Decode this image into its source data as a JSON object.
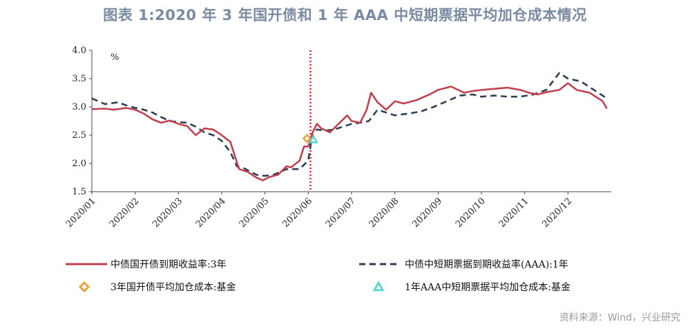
{
  "title": "图表 1:2020 年 3 年国开债和 1 年 AAA 中短期票据平均加仓成本情况",
  "source": "资料来源：Wind，兴业研究",
  "colors": {
    "series1": "#c0414f",
    "series2": "#2e3e56",
    "marker1": "#e8a23b",
    "marker2": "#5fd6d0",
    "vline": "#d81f1f"
  },
  "chart_data": {
    "type": "line",
    "ylabel": "%",
    "ylim": [
      1.5,
      4.0
    ],
    "yticks": [
      "4.0",
      "3.5",
      "3.0",
      "2.5",
      "2.0",
      "1.5"
    ],
    "xlim": [
      0,
      12
    ],
    "xticks": [
      "2020/01",
      "2020/02",
      "2020/03",
      "2020/04",
      "2020/05",
      "2020/06",
      "2020/07",
      "2020/08",
      "2020/09",
      "2020/10",
      "2020/11",
      "2020/12"
    ],
    "vline_x": 5.05,
    "series": [
      {
        "name": "中债国开债到期收益率:3年",
        "style": "solid",
        "x": [
          0,
          0.3,
          0.5,
          0.8,
          1.0,
          1.2,
          1.4,
          1.6,
          1.8,
          2.0,
          2.2,
          2.4,
          2.6,
          2.8,
          3.0,
          3.2,
          3.4,
          3.6,
          3.8,
          3.95,
          4.1,
          4.3,
          4.5,
          4.6,
          4.8,
          4.9,
          5.0,
          5.1,
          5.2,
          5.3,
          5.5,
          5.7,
          5.9,
          6.0,
          6.2,
          6.35,
          6.45,
          6.6,
          6.8,
          7.0,
          7.2,
          7.5,
          7.8,
          8.0,
          8.3,
          8.6,
          8.8,
          9.0,
          9.3,
          9.6,
          9.9,
          10.1,
          10.3,
          10.5,
          10.8,
          11.0,
          11.2,
          11.5,
          11.8,
          11.9
        ],
        "values": [
          2.96,
          2.97,
          2.95,
          2.98,
          2.95,
          2.88,
          2.78,
          2.72,
          2.76,
          2.7,
          2.66,
          2.5,
          2.62,
          2.6,
          2.5,
          2.38,
          1.9,
          1.85,
          1.75,
          1.7,
          1.76,
          1.8,
          1.95,
          1.93,
          2.05,
          2.3,
          2.3,
          2.55,
          2.7,
          2.62,
          2.55,
          2.7,
          2.85,
          2.75,
          2.72,
          2.95,
          3.25,
          3.08,
          2.95,
          3.1,
          3.06,
          3.12,
          3.22,
          3.3,
          3.36,
          3.25,
          3.28,
          3.3,
          3.32,
          3.34,
          3.3,
          3.25,
          3.22,
          3.26,
          3.3,
          3.42,
          3.3,
          3.25,
          3.1,
          2.97
        ]
      },
      {
        "name": "中债中短期票据到期收益率(AAA):1年",
        "style": "dashed",
        "x": [
          0,
          0.3,
          0.6,
          0.9,
          1.2,
          1.4,
          1.6,
          1.8,
          2.0,
          2.2,
          2.4,
          2.6,
          2.8,
          3.0,
          3.2,
          3.35,
          3.5,
          3.8,
          4.0,
          4.2,
          4.5,
          4.8,
          5.0,
          5.1,
          5.2,
          5.4,
          5.6,
          5.8,
          6.0,
          6.2,
          6.4,
          6.6,
          6.8,
          7.0,
          7.3,
          7.6,
          7.9,
          8.2,
          8.5,
          8.8,
          9.0,
          9.3,
          9.6,
          9.9,
          10.2,
          10.5,
          10.8,
          11.0,
          11.3,
          11.6,
          11.9
        ],
        "values": [
          3.15,
          3.05,
          3.08,
          3.0,
          2.95,
          2.9,
          2.82,
          2.75,
          2.73,
          2.72,
          2.65,
          2.55,
          2.5,
          2.4,
          2.2,
          1.95,
          1.92,
          1.8,
          1.78,
          1.8,
          1.9,
          1.9,
          2.05,
          2.55,
          2.6,
          2.58,
          2.6,
          2.65,
          2.7,
          2.72,
          2.75,
          2.95,
          2.9,
          2.85,
          2.88,
          2.92,
          3.0,
          3.1,
          3.2,
          3.22,
          3.18,
          3.2,
          3.18,
          3.18,
          3.22,
          3.3,
          3.6,
          3.5,
          3.45,
          3.3,
          3.15
        ]
      }
    ],
    "markers": [
      {
        "name": "3年国开债平均加仓成本:基金",
        "shape": "diamond",
        "x": 4.97,
        "y": 2.44
      },
      {
        "name": "1年AAA中短期票据平均加仓成本:基金",
        "shape": "triangle",
        "x": 5.12,
        "y": 2.42
      }
    ]
  }
}
